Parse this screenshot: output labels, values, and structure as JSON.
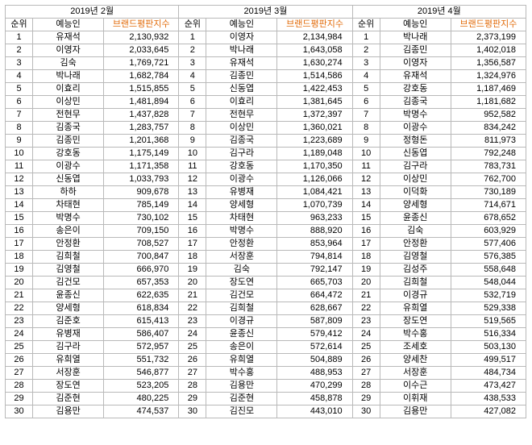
{
  "accent_color": "#e26b0a",
  "columns": {
    "rank": "순위",
    "name": "예능인",
    "index": "브랜드평판지수"
  },
  "chart_data": [
    {
      "type": "table",
      "title": "2019년 2월",
      "columns": [
        "순위",
        "예능인",
        "브랜드평판지수"
      ],
      "rows": [
        [
          1,
          "유재석",
          "2,130,932"
        ],
        [
          2,
          "이영자",
          "2,033,645"
        ],
        [
          3,
          "김숙",
          "1,769,721"
        ],
        [
          4,
          "박나래",
          "1,682,784"
        ],
        [
          5,
          "이효리",
          "1,515,855"
        ],
        [
          6,
          "이상민",
          "1,481,894"
        ],
        [
          7,
          "전현무",
          "1,437,828"
        ],
        [
          8,
          "김종국",
          "1,283,757"
        ],
        [
          9,
          "김종민",
          "1,201,368"
        ],
        [
          10,
          "강호동",
          "1,175,149"
        ],
        [
          11,
          "이광수",
          "1,171,358"
        ],
        [
          12,
          "신동엽",
          "1,033,793"
        ],
        [
          13,
          "하하",
          "909,678"
        ],
        [
          14,
          "차태현",
          "785,149"
        ],
        [
          15,
          "박명수",
          "730,102"
        ],
        [
          16,
          "송은이",
          "709,150"
        ],
        [
          17,
          "안정환",
          "708,527"
        ],
        [
          18,
          "김희철",
          "700,847"
        ],
        [
          19,
          "김영철",
          "666,970"
        ],
        [
          20,
          "김건모",
          "657,353"
        ],
        [
          21,
          "윤종신",
          "622,635"
        ],
        [
          22,
          "양세형",
          "618,834"
        ],
        [
          23,
          "김준호",
          "615,413"
        ],
        [
          24,
          "유병재",
          "586,407"
        ],
        [
          25,
          "김구라",
          "572,957"
        ],
        [
          26,
          "유희열",
          "551,732"
        ],
        [
          27,
          "서장훈",
          "546,877"
        ],
        [
          28,
          "장도연",
          "523,205"
        ],
        [
          29,
          "김준현",
          "480,225"
        ],
        [
          30,
          "김용만",
          "474,537"
        ]
      ]
    },
    {
      "type": "table",
      "title": "2019년 3월",
      "columns": [
        "순위",
        "예능인",
        "브랜드평판지수"
      ],
      "rows": [
        [
          1,
          "이영자",
          "2,134,984"
        ],
        [
          2,
          "박나래",
          "1,643,058"
        ],
        [
          3,
          "유재석",
          "1,630,274"
        ],
        [
          4,
          "김종민",
          "1,514,586"
        ],
        [
          5,
          "신동엽",
          "1,422,453"
        ],
        [
          6,
          "이효리",
          "1,381,645"
        ],
        [
          7,
          "전현무",
          "1,372,397"
        ],
        [
          8,
          "이상민",
          "1,360,021"
        ],
        [
          9,
          "김종국",
          "1,223,689"
        ],
        [
          10,
          "김구라",
          "1,189,048"
        ],
        [
          11,
          "강호동",
          "1,170,350"
        ],
        [
          12,
          "이광수",
          "1,126,066"
        ],
        [
          13,
          "유병재",
          "1,084,421"
        ],
        [
          14,
          "양세형",
          "1,070,739"
        ],
        [
          15,
          "차태현",
          "963,233"
        ],
        [
          16,
          "박명수",
          "888,920"
        ],
        [
          17,
          "안정환",
          "853,964"
        ],
        [
          18,
          "서장훈",
          "794,814"
        ],
        [
          19,
          "김숙",
          "792,147"
        ],
        [
          20,
          "장도연",
          "665,703"
        ],
        [
          21,
          "김건모",
          "664,472"
        ],
        [
          22,
          "김희철",
          "628,667"
        ],
        [
          23,
          "이경규",
          "587,809"
        ],
        [
          24,
          "윤종신",
          "579,412"
        ],
        [
          25,
          "송은이",
          "572,614"
        ],
        [
          26,
          "유희열",
          "504,889"
        ],
        [
          27,
          "박수홍",
          "488,953"
        ],
        [
          28,
          "김용만",
          "470,299"
        ],
        [
          29,
          "김준현",
          "458,878"
        ],
        [
          30,
          "김진모",
          "443,010"
        ]
      ]
    },
    {
      "type": "table",
      "title": "2019년 4월",
      "columns": [
        "순위",
        "예능인",
        "브랜드평판지수"
      ],
      "rows": [
        [
          1,
          "박나래",
          "2,373,199"
        ],
        [
          2,
          "김종민",
          "1,402,018"
        ],
        [
          3,
          "이영자",
          "1,356,587"
        ],
        [
          4,
          "유재석",
          "1,324,976"
        ],
        [
          5,
          "강호동",
          "1,187,469"
        ],
        [
          6,
          "김종국",
          "1,181,682"
        ],
        [
          7,
          "박명수",
          "952,582"
        ],
        [
          8,
          "이광수",
          "834,242"
        ],
        [
          9,
          "정형돈",
          "811,973"
        ],
        [
          10,
          "신동엽",
          "792,248"
        ],
        [
          11,
          "김구라",
          "783,731"
        ],
        [
          12,
          "이상민",
          "762,700"
        ],
        [
          13,
          "이덕화",
          "730,189"
        ],
        [
          14,
          "양세형",
          "714,671"
        ],
        [
          15,
          "윤종신",
          "678,652"
        ],
        [
          16,
          "김숙",
          "603,929"
        ],
        [
          17,
          "안정환",
          "577,406"
        ],
        [
          18,
          "김영철",
          "576,385"
        ],
        [
          19,
          "김성주",
          "558,648"
        ],
        [
          20,
          "김희철",
          "548,044"
        ],
        [
          21,
          "이경규",
          "532,719"
        ],
        [
          22,
          "유희열",
          "529,338"
        ],
        [
          23,
          "장도연",
          "519,565"
        ],
        [
          24,
          "박수홍",
          "516,334"
        ],
        [
          25,
          "조세호",
          "503,130"
        ],
        [
          26,
          "양세찬",
          "499,517"
        ],
        [
          27,
          "서장훈",
          "484,734"
        ],
        [
          28,
          "이수근",
          "473,427"
        ],
        [
          29,
          "이휘재",
          "438,533"
        ],
        [
          30,
          "김용만",
          "427,082"
        ]
      ]
    }
  ]
}
